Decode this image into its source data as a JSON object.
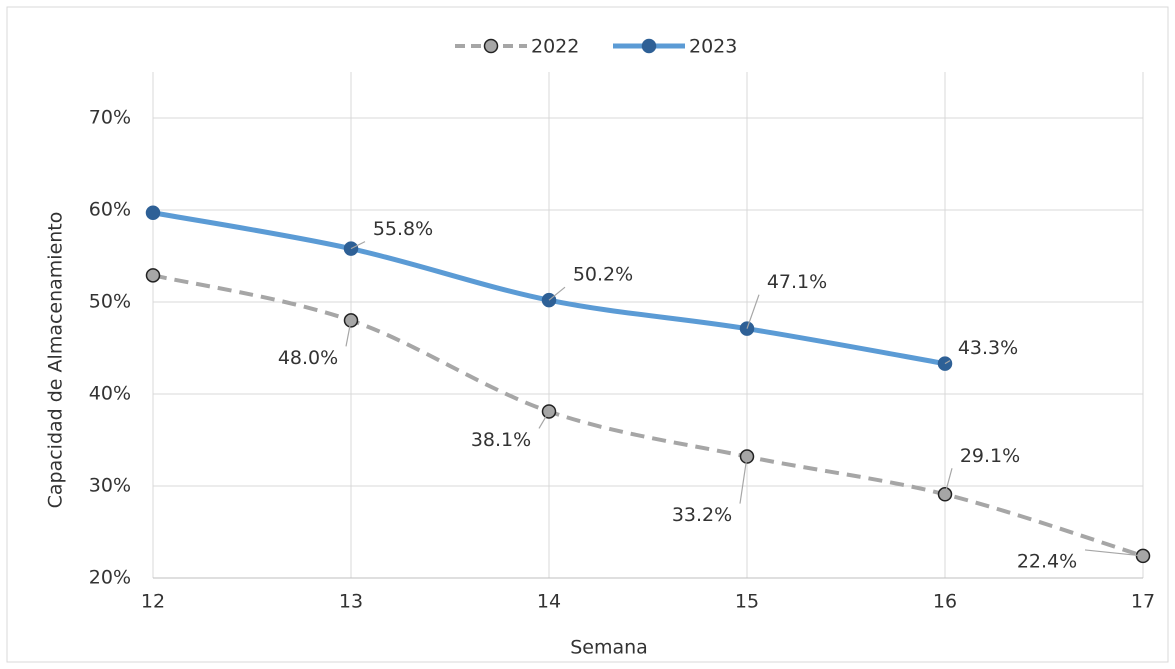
{
  "chart_data": {
    "type": "line",
    "x_label": "Semana",
    "y_label": "Capacidad de Almacenamiento",
    "x": [
      12,
      13,
      14,
      15,
      16,
      17
    ],
    "xlim": [
      12,
      17
    ],
    "xticks": [
      12,
      13,
      14,
      15,
      16,
      17
    ],
    "ylim": [
      20,
      75
    ],
    "yticks": [
      {
        "value": 20,
        "label": "20%"
      },
      {
        "value": 30,
        "label": "30%"
      },
      {
        "value": 40,
        "label": "40%"
      },
      {
        "value": 50,
        "label": "50%"
      },
      {
        "value": 60,
        "label": "60%"
      },
      {
        "value": 70,
        "label": "70%"
      }
    ],
    "grid": true,
    "legend": "top",
    "series": [
      {
        "name": "2022",
        "color": "#a6a6a6",
        "marker_color": "#a6a6a6",
        "dashed": true,
        "values": [
          52.9,
          48.0,
          38.1,
          33.2,
          29.1,
          22.4
        ],
        "value_labels": [
          null,
          "48.0%",
          "38.1%",
          "33.2%",
          "29.1%",
          "22.4%"
        ]
      },
      {
        "name": "2023",
        "color": "#5b9bd5",
        "marker_color": "#2e6096",
        "dashed": false,
        "values": [
          59.7,
          55.8,
          50.2,
          47.1,
          43.3,
          null
        ],
        "value_labels": [
          null,
          "55.8%",
          "50.2%",
          "47.1%",
          "43.3%",
          null
        ]
      }
    ]
  }
}
